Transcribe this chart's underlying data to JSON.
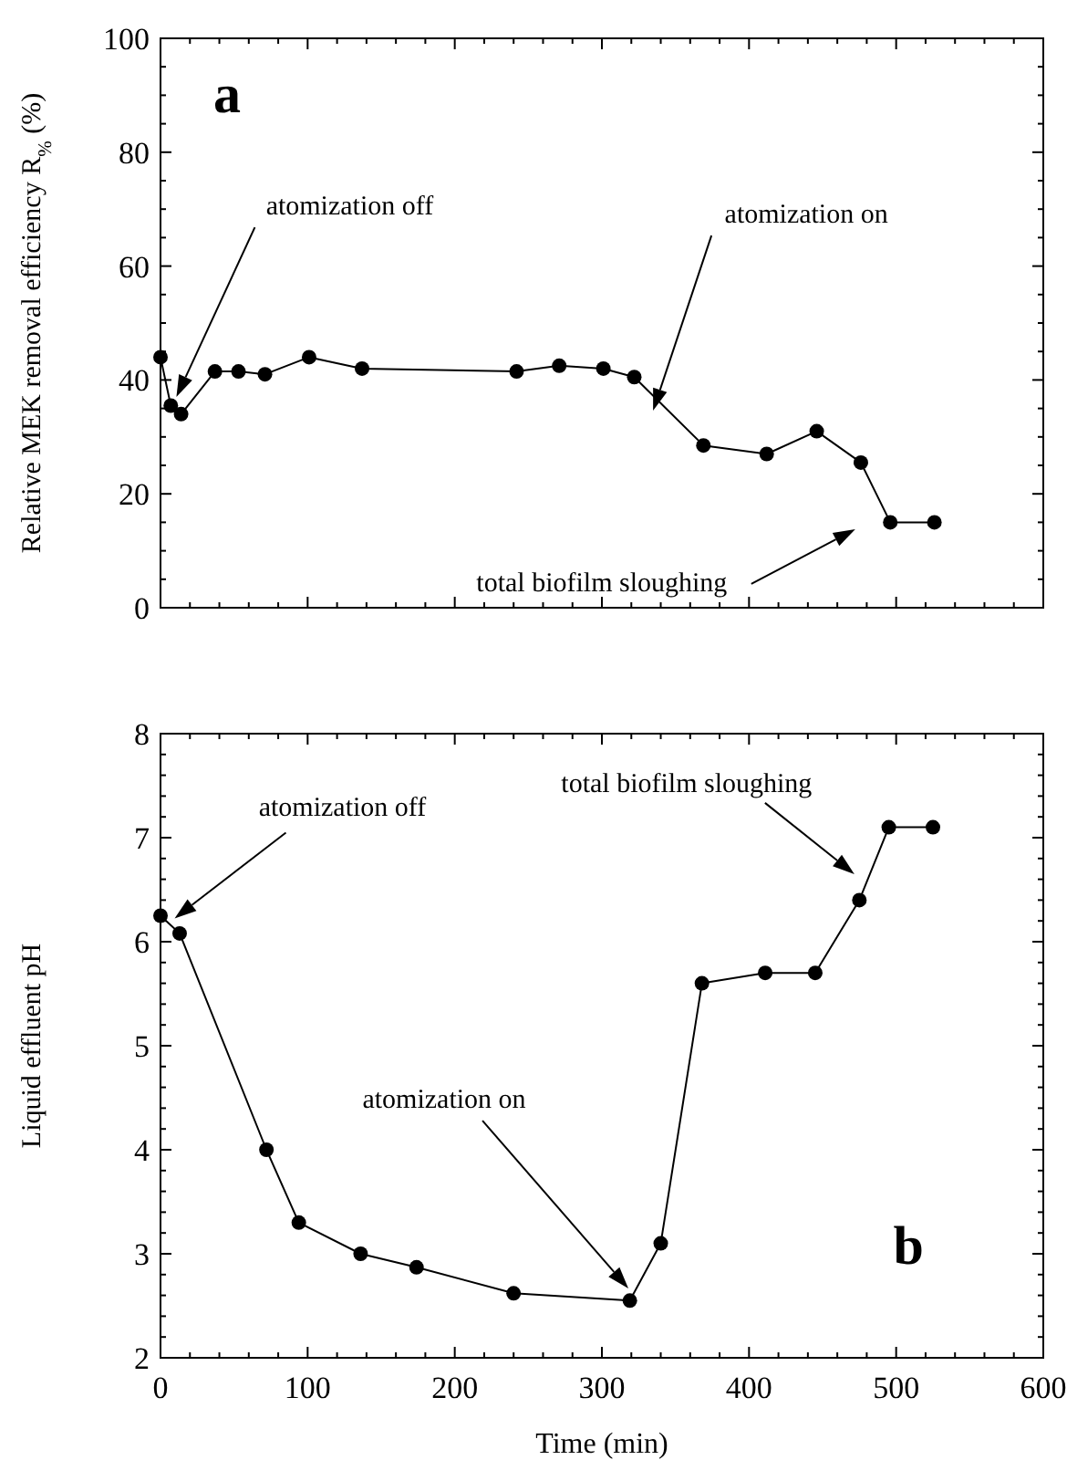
{
  "chart_data": [
    {
      "type": "line",
      "title": "a",
      "ylabel": "Relative MEK removal efficiency R$_{%}$  (%)",
      "xlim": [
        0,
        600
      ],
      "ylim": [
        0,
        100
      ],
      "tick_labels": "y",
      "marker": "circle",
      "line_style": "solid",
      "xticks": [
        {
          "value": 0,
          "label": null
        },
        {
          "value": 20,
          "label": null
        },
        {
          "value": 40,
          "label": null
        },
        {
          "value": 60,
          "label": null
        },
        {
          "value": 80,
          "label": null
        },
        {
          "value": 100,
          "label": null
        },
        {
          "value": 120,
          "label": null
        },
        {
          "value": 140,
          "label": null
        },
        {
          "value": 160,
          "label": null
        },
        {
          "value": 180,
          "label": null
        },
        {
          "value": 200,
          "label": null
        },
        {
          "value": 220,
          "label": null
        },
        {
          "value": 240,
          "label": null
        },
        {
          "value": 260,
          "label": null
        },
        {
          "value": 280,
          "label": null
        },
        {
          "value": 300,
          "label": null
        },
        {
          "value": 320,
          "label": null
        },
        {
          "value": 340,
          "label": null
        },
        {
          "value": 360,
          "label": null
        },
        {
          "value": 380,
          "label": null
        },
        {
          "value": 400,
          "label": null
        },
        {
          "value": 420,
          "label": null
        },
        {
          "value": 440,
          "label": null
        },
        {
          "value": 460,
          "label": null
        },
        {
          "value": 480,
          "label": null
        },
        {
          "value": 500,
          "label": null
        },
        {
          "value": 520,
          "label": null
        },
        {
          "value": 540,
          "label": null
        },
        {
          "value": 560,
          "label": null
        },
        {
          "value": 580,
          "label": null
        },
        {
          "value": 600,
          "label": null
        }
      ],
      "yticks": [
        0,
        {
          "value": 5,
          "label": null
        },
        {
          "value": 10,
          "label": null
        },
        {
          "value": 15,
          "label": null
        },
        20,
        {
          "value": 25,
          "label": null
        },
        {
          "value": 30,
          "label": null
        },
        {
          "value": 35,
          "label": null
        },
        40,
        {
          "value": 45,
          "label": null
        },
        {
          "value": 50,
          "label": null
        },
        {
          "value": 55,
          "label": null
        },
        60,
        {
          "value": 65,
          "label": null
        },
        {
          "value": 70,
          "label": null
        },
        {
          "value": 75,
          "label": null
        },
        80,
        {
          "value": 85,
          "label": null
        },
        {
          "value": 90,
          "label": null
        },
        {
          "value": 95,
          "label": null
        },
        100
      ],
      "series": [
        {
          "color": "#000000",
          "x": [
            0,
            7,
            14,
            37,
            53,
            71,
            101,
            137,
            242,
            271,
            301,
            322,
            369,
            412,
            446,
            476,
            496,
            526
          ],
          "values": [
            44,
            35.5,
            34,
            41.5,
            41.5,
            41,
            44,
            42,
            41.5,
            42.5,
            42,
            40.5,
            28.5,
            27,
            31,
            25.5,
            15,
            15
          ]
        }
      ],
      "annotations": [
        "atomization off",
        "atomization on",
        "total biofilm sloughing"
      ]
    },
    {
      "type": "line",
      "title": "b",
      "xlabel": "Time (min)",
      "ylabel": "Liquid effluent pH",
      "xlim": [
        0,
        600
      ],
      "ylim": [
        2,
        8
      ],
      "marker": "circle",
      "line_style": "solid",
      "xticks": [
        0,
        {
          "value": 20,
          "label": null
        },
        {
          "value": 40,
          "label": null
        },
        {
          "value": 60,
          "label": null
        },
        {
          "value": 80,
          "label": null
        },
        100,
        {
          "value": 120,
          "label": null
        },
        {
          "value": 140,
          "label": null
        },
        {
          "value": 160,
          "label": null
        },
        {
          "value": 180,
          "label": null
        },
        200,
        {
          "value": 220,
          "label": null
        },
        {
          "value": 240,
          "label": null
        },
        {
          "value": 260,
          "label": null
        },
        {
          "value": 280,
          "label": null
        },
        300,
        {
          "value": 320,
          "label": null
        },
        {
          "value": 340,
          "label": null
        },
        {
          "value": 360,
          "label": null
        },
        {
          "value": 380,
          "label": null
        },
        400,
        {
          "value": 420,
          "label": null
        },
        {
          "value": 440,
          "label": null
        },
        {
          "value": 460,
          "label": null
        },
        {
          "value": 480,
          "label": null
        },
        500,
        {
          "value": 520,
          "label": null
        },
        {
          "value": 540,
          "label": null
        },
        {
          "value": 560,
          "label": null
        },
        {
          "value": 580,
          "label": null
        },
        600
      ],
      "yticks": [
        2,
        {
          "value": 2.2,
          "label": null
        },
        {
          "value": 2.4,
          "label": null
        },
        {
          "value": 2.6,
          "label": null
        },
        {
          "value": 2.8,
          "label": null
        },
        3,
        {
          "value": 3.2,
          "label": null
        },
        {
          "value": 3.4,
          "label": null
        },
        {
          "value": 3.6,
          "label": null
        },
        {
          "value": 3.8,
          "label": null
        },
        4,
        {
          "value": 4.2,
          "label": null
        },
        {
          "value": 4.4,
          "label": null
        },
        {
          "value": 4.6,
          "label": null
        },
        {
          "value": 4.8,
          "label": null
        },
        5,
        {
          "value": 5.2,
          "label": null
        },
        {
          "value": 5.4,
          "label": null
        },
        {
          "value": 5.6,
          "label": null
        },
        {
          "value": 5.8,
          "label": null
        },
        6,
        {
          "value": 6.2,
          "label": null
        },
        {
          "value": 6.4,
          "label": null
        },
        {
          "value": 6.6,
          "label": null
        },
        {
          "value": 6.8,
          "label": null
        },
        7,
        {
          "value": 7.2,
          "label": null
        },
        {
          "value": 7.4,
          "label": null
        },
        {
          "value": 7.6,
          "label": null
        },
        {
          "value": 7.8,
          "label": null
        },
        8
      ],
      "series": [
        {
          "color": "#000000",
          "x": [
            0,
            13,
            72,
            94,
            136,
            174,
            240,
            319,
            340,
            368,
            411,
            445,
            475,
            495,
            525
          ],
          "values": [
            6.25,
            6.08,
            4,
            3.3,
            3,
            2.87,
            2.62,
            2.55,
            3.1,
            5.6,
            5.7,
            5.7,
            6.4,
            7.1,
            7.1
          ]
        }
      ],
      "annotations": [
        "atomization off",
        "atomization on",
        "total biofilm sloughing"
      ]
    }
  ]
}
